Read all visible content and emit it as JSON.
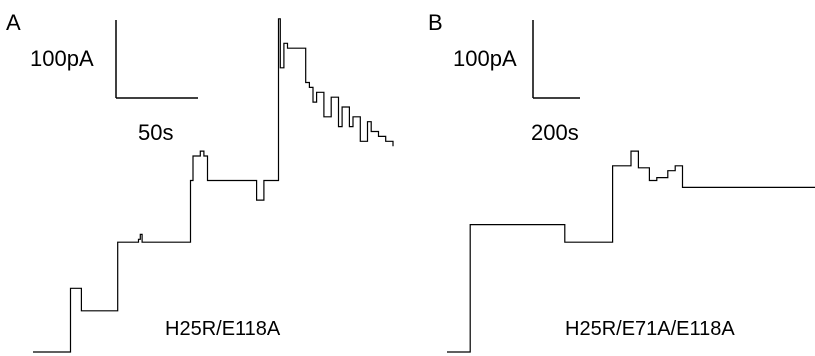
{
  "chart_data": [
    {
      "type": "line",
      "panel_label": "A",
      "construct": "H25R/E118A",
      "scale_bar": {
        "y_label": "100pA",
        "x_label": "50s"
      },
      "trace_color": "#000000",
      "description_of_levels": "stepwise single-channel current increases with later flickering",
      "x": [
        0,
        6,
        10,
        10.3,
        12,
        13,
        13.3,
        16,
        23,
        23.3,
        27,
        29,
        29.5,
        30,
        30.5,
        34,
        43,
        43.3,
        44,
        46,
        47,
        48,
        56,
        61,
        61.5,
        63,
        63.5,
        67,
        67.5,
        68,
        69,
        70,
        75,
        76,
        77,
        78,
        80,
        82,
        84,
        85,
        87,
        88,
        90,
        92,
        93,
        95,
        97,
        99
      ],
      "y": [
        0,
        0,
        0,
        65,
        65,
        65,
        42,
        42,
        42,
        112,
        112,
        115,
        120,
        112,
        112,
        112,
        112,
        175,
        200,
        205,
        200,
        175,
        175,
        175,
        155,
        155,
        175,
        175,
        340,
        290,
        315,
        310,
        275,
        270,
        255,
        265,
        240,
        260,
        230,
        250,
        230,
        240,
        215,
        235,
        225,
        220,
        215,
        210
      ]
    },
    {
      "type": "line",
      "panel_label": "B",
      "construct": "H25R/E71A/E118A",
      "scale_bar": {
        "y_label": "100pA",
        "x_label": "200s"
      },
      "trace_color": "#000000",
      "x": [
        0,
        4,
        6,
        6.3,
        20,
        30,
        32,
        32.3,
        40,
        45,
        47,
        49,
        50,
        52,
        53,
        55,
        57,
        60,
        62,
        64,
        67,
        70,
        73,
        75,
        80,
        85,
        90,
        95,
        100
      ],
      "y": [
        0,
        0,
        0,
        130,
        130,
        130,
        112,
        112,
        112,
        190,
        190,
        190,
        205,
        188,
        188,
        175,
        178,
        185,
        190,
        168,
        168,
        168,
        168,
        168,
        168,
        168,
        168,
        168,
        168
      ]
    }
  ]
}
